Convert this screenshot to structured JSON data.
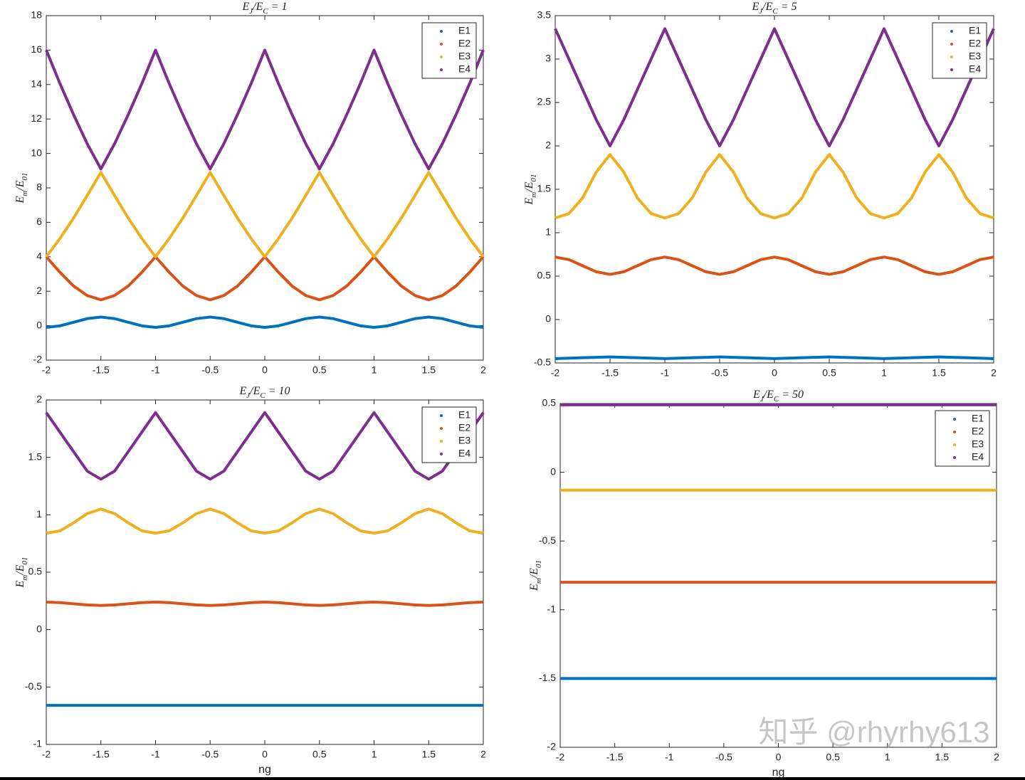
{
  "chart_data": [
    {
      "type": "line",
      "title": "E_J/E_C = 1",
      "ylabel": "E_m/E_{01}",
      "x": [
        -2,
        -1.875,
        -1.75,
        -1.625,
        -1.5,
        -1.375,
        -1.25,
        -1.125,
        -1,
        -0.875,
        -0.75,
        -0.625,
        -0.5,
        -0.375,
        -0.25,
        -0.125,
        0,
        0.125,
        0.25,
        0.375,
        0.5,
        0.625,
        0.75,
        0.875,
        1,
        1.125,
        1.25,
        1.375,
        1.5,
        1.625,
        1.75,
        1.875,
        2
      ],
      "xlim": [
        -2,
        2
      ],
      "xticks": [
        -2,
        -1.5,
        -1,
        -0.5,
        0,
        0.5,
        1,
        1.5,
        2
      ],
      "ylim": [
        -2,
        18
      ],
      "yticks": [
        -2,
        0,
        2,
        4,
        6,
        8,
        10,
        12,
        14,
        16,
        18
      ],
      "legend": "top-right",
      "series": [
        {
          "name": "E1",
          "color": "#0072bd",
          "values": [
            -0.1,
            -0.01,
            0.2,
            0.41,
            0.5,
            0.41,
            0.2,
            -0.01,
            -0.1,
            -0.01,
            0.2,
            0.41,
            0.5,
            0.41,
            0.2,
            -0.01,
            -0.1,
            -0.01,
            0.2,
            0.41,
            0.5,
            0.41,
            0.2,
            -0.01,
            -0.1,
            -0.01,
            0.2,
            0.41,
            0.5,
            0.41,
            0.2,
            -0.01,
            -0.1
          ]
        },
        {
          "name": "E2",
          "color": "#d95319",
          "values": [
            4,
            3.1,
            2.3,
            1.75,
            1.5,
            1.75,
            2.3,
            3.1,
            4,
            3.1,
            2.3,
            1.75,
            1.5,
            1.75,
            2.3,
            3.1,
            4,
            3.1,
            2.3,
            1.75,
            1.5,
            1.75,
            2.3,
            3.1,
            4,
            3.1,
            2.3,
            1.75,
            1.5,
            1.75,
            2.3,
            3.1,
            4
          ]
        },
        {
          "name": "E3",
          "color": "#edb120",
          "values": [
            4,
            5.06,
            6.25,
            7.56,
            8.9,
            7.56,
            6.25,
            5.06,
            4,
            5.06,
            6.25,
            7.56,
            8.9,
            7.56,
            6.25,
            5.06,
            4,
            5.06,
            6.25,
            7.56,
            8.9,
            7.56,
            6.25,
            5.06,
            4,
            5.06,
            6.25,
            7.56,
            8.9,
            7.56,
            6.25,
            5.06,
            4
          ]
        },
        {
          "name": "E4",
          "color": "#7e2f8e",
          "values": [
            16,
            14.06,
            12.25,
            10.56,
            9.1,
            10.56,
            12.25,
            14.06,
            16,
            14.06,
            12.25,
            10.56,
            9.1,
            10.56,
            12.25,
            14.06,
            16,
            14.06,
            12.25,
            10.56,
            9.1,
            10.56,
            12.25,
            14.06,
            16,
            14.06,
            12.25,
            10.56,
            9.1,
            10.56,
            12.25,
            14.06,
            16
          ]
        }
      ]
    },
    {
      "type": "line",
      "title": "E_J/E_C = 5",
      "ylabel": "E_m/E_{01}",
      "x": [
        -2,
        -1.875,
        -1.75,
        -1.625,
        -1.5,
        -1.375,
        -1.25,
        -1.125,
        -1,
        -0.875,
        -0.75,
        -0.625,
        -0.5,
        -0.375,
        -0.25,
        -0.125,
        0,
        0.125,
        0.25,
        0.375,
        0.5,
        0.625,
        0.75,
        0.875,
        1,
        1.125,
        1.25,
        1.375,
        1.5,
        1.625,
        1.75,
        1.875,
        2
      ],
      "xlim": [
        -2,
        2
      ],
      "xticks": [
        -2,
        -1.5,
        -1,
        -0.5,
        0,
        0.5,
        1,
        1.5,
        2
      ],
      "ylim": [
        -0.5,
        3.5
      ],
      "yticks": [
        -0.5,
        0,
        0.5,
        1,
        1.5,
        2,
        2.5,
        3,
        3.5
      ],
      "legend": "top-right",
      "series": [
        {
          "name": "E1",
          "color": "#0072bd",
          "values": [
            -0.45,
            -0.445,
            -0.44,
            -0.435,
            -0.43,
            -0.435,
            -0.44,
            -0.445,
            -0.45,
            -0.445,
            -0.44,
            -0.435,
            -0.43,
            -0.435,
            -0.44,
            -0.445,
            -0.45,
            -0.445,
            -0.44,
            -0.435,
            -0.43,
            -0.435,
            -0.44,
            -0.445,
            -0.45,
            -0.445,
            -0.44,
            -0.435,
            -0.43,
            -0.435,
            -0.44,
            -0.445,
            -0.45
          ]
        },
        {
          "name": "E2",
          "color": "#d95319",
          "values": [
            0.72,
            0.69,
            0.62,
            0.55,
            0.52,
            0.55,
            0.62,
            0.69,
            0.72,
            0.69,
            0.62,
            0.55,
            0.52,
            0.55,
            0.62,
            0.69,
            0.72,
            0.69,
            0.62,
            0.55,
            0.52,
            0.55,
            0.62,
            0.69,
            0.72,
            0.69,
            0.62,
            0.55,
            0.52,
            0.55,
            0.62,
            0.69,
            0.72
          ]
        },
        {
          "name": "E3",
          "color": "#edb120",
          "values": [
            1.17,
            1.22,
            1.4,
            1.7,
            1.9,
            1.7,
            1.4,
            1.22,
            1.17,
            1.22,
            1.4,
            1.7,
            1.9,
            1.7,
            1.4,
            1.22,
            1.17,
            1.22,
            1.4,
            1.7,
            1.9,
            1.7,
            1.4,
            1.22,
            1.17,
            1.22,
            1.4,
            1.7,
            1.9,
            1.7,
            1.4,
            1.22,
            1.17
          ]
        },
        {
          "name": "E4",
          "color": "#7e2f8e",
          "values": [
            3.35,
            3.0,
            2.65,
            2.3,
            2.0,
            2.3,
            2.65,
            3.0,
            3.35,
            3.0,
            2.65,
            2.3,
            2.0,
            2.3,
            2.65,
            3.0,
            3.35,
            3.0,
            2.65,
            2.3,
            2.0,
            2.3,
            2.65,
            3.0,
            3.35,
            3.0,
            2.65,
            2.3,
            2.0,
            2.3,
            2.65,
            3.0,
            3.35
          ]
        }
      ]
    },
    {
      "type": "line",
      "title": "E_J/E_C = 10",
      "ylabel": "E_m/E_{01}",
      "xlabel": "ng",
      "x": [
        -2,
        -1.875,
        -1.75,
        -1.625,
        -1.5,
        -1.375,
        -1.25,
        -1.125,
        -1,
        -0.875,
        -0.75,
        -0.625,
        -0.5,
        -0.375,
        -0.25,
        -0.125,
        0,
        0.125,
        0.25,
        0.375,
        0.5,
        0.625,
        0.75,
        0.875,
        1,
        1.125,
        1.25,
        1.375,
        1.5,
        1.625,
        1.75,
        1.875,
        2
      ],
      "xlim": [
        -2,
        2
      ],
      "xticks": [
        -2,
        -1.5,
        -1,
        -0.5,
        0,
        0.5,
        1,
        1.5,
        2
      ],
      "ylim": [
        -1,
        2
      ],
      "yticks": [
        -1,
        -0.5,
        0,
        0.5,
        1,
        1.5,
        2
      ],
      "legend": "top-right",
      "series": [
        {
          "name": "E1",
          "color": "#0072bd",
          "values": [
            -0.66,
            -0.66,
            -0.66,
            -0.66,
            -0.66,
            -0.66,
            -0.66,
            -0.66,
            -0.66,
            -0.66,
            -0.66,
            -0.66,
            -0.66,
            -0.66,
            -0.66,
            -0.66,
            -0.66,
            -0.66,
            -0.66,
            -0.66,
            -0.66,
            -0.66,
            -0.66,
            -0.66,
            -0.66,
            -0.66,
            -0.66,
            -0.66,
            -0.66,
            -0.66,
            -0.66,
            -0.66,
            -0.66
          ]
        },
        {
          "name": "E2",
          "color": "#d95319",
          "values": [
            0.24,
            0.235,
            0.225,
            0.215,
            0.21,
            0.215,
            0.225,
            0.235,
            0.24,
            0.235,
            0.225,
            0.215,
            0.21,
            0.215,
            0.225,
            0.235,
            0.24,
            0.235,
            0.225,
            0.215,
            0.21,
            0.215,
            0.225,
            0.235,
            0.24,
            0.235,
            0.225,
            0.215,
            0.21,
            0.215,
            0.225,
            0.235,
            0.24
          ]
        },
        {
          "name": "E3",
          "color": "#edb120",
          "values": [
            0.84,
            0.86,
            0.93,
            1.01,
            1.05,
            1.01,
            0.93,
            0.86,
            0.84,
            0.86,
            0.93,
            1.01,
            1.05,
            1.01,
            0.93,
            0.86,
            0.84,
            0.86,
            0.93,
            1.01,
            1.05,
            1.01,
            0.93,
            0.86,
            0.84,
            0.86,
            0.93,
            1.01,
            1.05,
            1.01,
            0.93,
            0.86,
            0.84
          ]
        },
        {
          "name": "E4",
          "color": "#7e2f8e",
          "values": [
            1.89,
            1.72,
            1.55,
            1.38,
            1.31,
            1.38,
            1.55,
            1.72,
            1.89,
            1.72,
            1.55,
            1.38,
            1.31,
            1.38,
            1.55,
            1.72,
            1.89,
            1.72,
            1.55,
            1.38,
            1.31,
            1.38,
            1.55,
            1.72,
            1.89,
            1.72,
            1.55,
            1.38,
            1.31,
            1.38,
            1.55,
            1.72,
            1.89
          ]
        }
      ]
    },
    {
      "type": "line",
      "title": "E_J/E_C = 50",
      "ylabel": "E_m/E_{01}",
      "xlabel": "ng",
      "x": [
        -2,
        -1.875,
        -1.75,
        -1.625,
        -1.5,
        -1.375,
        -1.25,
        -1.125,
        -1,
        -0.875,
        -0.75,
        -0.625,
        -0.5,
        -0.375,
        -0.25,
        -0.125,
        0,
        0.125,
        0.25,
        0.375,
        0.5,
        0.625,
        0.75,
        0.875,
        1,
        1.125,
        1.25,
        1.375,
        1.5,
        1.625,
        1.75,
        1.875,
        2
      ],
      "xlim": [
        -2,
        2
      ],
      "xticks": [
        -2,
        -1.5,
        -1,
        -0.5,
        0,
        0.5,
        1,
        1.5,
        2
      ],
      "ylim": [
        -2,
        0.5
      ],
      "yticks": [
        -2,
        -1.5,
        -1,
        -0.5,
        0,
        0.5
      ],
      "legend": "top-right",
      "series": [
        {
          "name": "E1",
          "color": "#0072bd",
          "values": [
            -1.5,
            -1.5,
            -1.5,
            -1.5,
            -1.5,
            -1.5,
            -1.5,
            -1.5,
            -1.5,
            -1.5,
            -1.5,
            -1.5,
            -1.5,
            -1.5,
            -1.5,
            -1.5,
            -1.5,
            -1.5,
            -1.5,
            -1.5,
            -1.5,
            -1.5,
            -1.5,
            -1.5,
            -1.5,
            -1.5,
            -1.5,
            -1.5,
            -1.5,
            -1.5,
            -1.5,
            -1.5,
            -1.5
          ]
        },
        {
          "name": "E2",
          "color": "#d95319",
          "values": [
            -0.8,
            -0.8,
            -0.8,
            -0.8,
            -0.8,
            -0.8,
            -0.8,
            -0.8,
            -0.8,
            -0.8,
            -0.8,
            -0.8,
            -0.8,
            -0.8,
            -0.8,
            -0.8,
            -0.8,
            -0.8,
            -0.8,
            -0.8,
            -0.8,
            -0.8,
            -0.8,
            -0.8,
            -0.8,
            -0.8,
            -0.8,
            -0.8,
            -0.8,
            -0.8,
            -0.8,
            -0.8,
            -0.8
          ]
        },
        {
          "name": "E3",
          "color": "#edb120",
          "values": [
            -0.13,
            -0.13,
            -0.13,
            -0.13,
            -0.13,
            -0.13,
            -0.13,
            -0.13,
            -0.13,
            -0.13,
            -0.13,
            -0.13,
            -0.13,
            -0.13,
            -0.13,
            -0.13,
            -0.13,
            -0.13,
            -0.13,
            -0.13,
            -0.13,
            -0.13,
            -0.13,
            -0.13,
            -0.13,
            -0.13,
            -0.13,
            -0.13,
            -0.13,
            -0.13,
            -0.13,
            -0.13,
            -0.13
          ]
        },
        {
          "name": "E4",
          "color": "#7e2f8e",
          "values": [
            0.49,
            0.49,
            0.49,
            0.49,
            0.49,
            0.49,
            0.49,
            0.49,
            0.49,
            0.49,
            0.49,
            0.49,
            0.49,
            0.49,
            0.49,
            0.49,
            0.49,
            0.49,
            0.49,
            0.49,
            0.49,
            0.49,
            0.49,
            0.49,
            0.49,
            0.49,
            0.49,
            0.49,
            0.49,
            0.49,
            0.49,
            0.49,
            0.49
          ]
        }
      ]
    }
  ],
  "watermark": "知乎 @rhyrhy613"
}
